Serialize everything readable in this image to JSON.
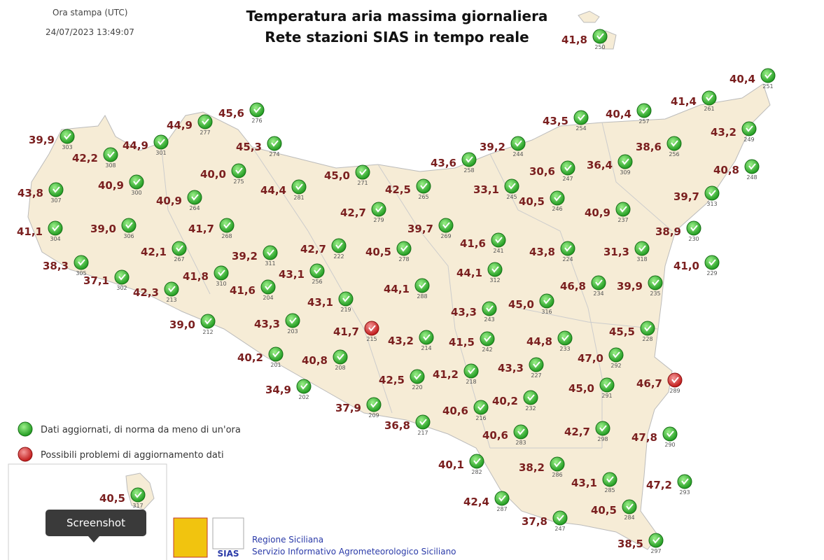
{
  "header": {
    "print_label": "Ora stampa (UTC)",
    "print_time": "24/07/2023 13:49:07",
    "title": "Temperatura aria massima giornaliera",
    "subtitle": "Rete stazioni SIAS in tempo reale"
  },
  "stations": [
    {
      "temp": "41,8",
      "id": "250",
      "color": "green"
    },
    {
      "temp": "40,4",
      "id": "251",
      "color": "green"
    },
    {
      "temp": "41,4",
      "id": "261",
      "color": "green"
    },
    {
      "temp": "43,5",
      "id": "254",
      "color": "green"
    },
    {
      "temp": "40,4",
      "id": "257",
      "color": "green"
    },
    {
      "temp": "45,6",
      "id": "276",
      "color": "green"
    },
    {
      "temp": "44,9",
      "id": "277",
      "color": "green"
    },
    {
      "temp": "39,9",
      "id": "303",
      "color": "green"
    },
    {
      "temp": "44,9",
      "id": "301",
      "color": "green"
    },
    {
      "temp": "42,2",
      "id": "308",
      "color": "green"
    },
    {
      "temp": "45,3",
      "id": "274",
      "color": "green"
    },
    {
      "temp": "39,2",
      "id": "244",
      "color": "green"
    },
    {
      "temp": "38,6",
      "id": "256",
      "color": "green"
    },
    {
      "temp": "43,2",
      "id": "249",
      "color": "green"
    },
    {
      "temp": "43,6",
      "id": "258",
      "color": "green"
    },
    {
      "temp": "30,6",
      "id": "247",
      "color": "green"
    },
    {
      "temp": "36,4",
      "id": "309",
      "color": "green"
    },
    {
      "temp": "40,8",
      "id": "248",
      "color": "green"
    },
    {
      "temp": "40,0",
      "id": "275",
      "color": "green"
    },
    {
      "temp": "45,0",
      "id": "271",
      "color": "green"
    },
    {
      "temp": "43,8",
      "id": "307",
      "color": "green"
    },
    {
      "temp": "40,9",
      "id": "300",
      "color": "green"
    },
    {
      "temp": "40,9",
      "id": "264",
      "color": "green"
    },
    {
      "temp": "44,4",
      "id": "281",
      "color": "green"
    },
    {
      "temp": "42,5",
      "id": "265",
      "color": "green"
    },
    {
      "temp": "33,1",
      "id": "245",
      "color": "green"
    },
    {
      "temp": "40,5",
      "id": "246",
      "color": "green"
    },
    {
      "temp": "39,7",
      "id": "313",
      "color": "green"
    },
    {
      "temp": "42,7",
      "id": "279",
      "color": "green"
    },
    {
      "temp": "40,9",
      "id": "237",
      "color": "green"
    },
    {
      "temp": "41,1",
      "id": "304",
      "color": "green"
    },
    {
      "temp": "39,0",
      "id": "306",
      "color": "green"
    },
    {
      "temp": "41,7",
      "id": "268",
      "color": "green"
    },
    {
      "temp": "39,7",
      "id": "269",
      "color": "green"
    },
    {
      "temp": "38,9",
      "id": "230",
      "color": "green"
    },
    {
      "temp": "41,6",
      "id": "241",
      "color": "green"
    },
    {
      "temp": "42,1",
      "id": "267",
      "color": "green"
    },
    {
      "temp": "39,2",
      "id": "311",
      "color": "green"
    },
    {
      "temp": "42,7",
      "id": "222",
      "color": "green"
    },
    {
      "temp": "40,5",
      "id": "278",
      "color": "green"
    },
    {
      "temp": "43,8",
      "id": "224",
      "color": "green"
    },
    {
      "temp": "31,3",
      "id": "318",
      "color": "green"
    },
    {
      "temp": "38,3",
      "id": "305",
      "color": "green"
    },
    {
      "temp": "41,0",
      "id": "229",
      "color": "green"
    },
    {
      "temp": "37,1",
      "id": "302",
      "color": "green"
    },
    {
      "temp": "41,8",
      "id": "310",
      "color": "green"
    },
    {
      "temp": "43,1",
      "id": "256",
      "color": "green"
    },
    {
      "temp": "44,1",
      "id": "312",
      "color": "green"
    },
    {
      "temp": "42,3",
      "id": "213",
      "color": "green"
    },
    {
      "temp": "41,6",
      "id": "204",
      "color": "green"
    },
    {
      "temp": "44,1",
      "id": "288",
      "color": "green"
    },
    {
      "temp": "46,8",
      "id": "234",
      "color": "green"
    },
    {
      "temp": "39,9",
      "id": "235",
      "color": "green"
    },
    {
      "temp": "43,1",
      "id": "219",
      "color": "green"
    },
    {
      "temp": "45,0",
      "id": "316",
      "color": "green"
    },
    {
      "temp": "43,3",
      "id": "243",
      "color": "green"
    },
    {
      "temp": "39,0",
      "id": "212",
      "color": "green"
    },
    {
      "temp": "43,3",
      "id": "203",
      "color": "green"
    },
    {
      "temp": "41,7",
      "id": "215",
      "color": "red"
    },
    {
      "temp": "45,5",
      "id": "228",
      "color": "green"
    },
    {
      "temp": "43,2",
      "id": "214",
      "color": "green"
    },
    {
      "temp": "41,5",
      "id": "242",
      "color": "green"
    },
    {
      "temp": "44,8",
      "id": "233",
      "color": "green"
    },
    {
      "temp": "47,0",
      "id": "292",
      "color": "green"
    },
    {
      "temp": "40,2",
      "id": "201",
      "color": "green"
    },
    {
      "temp": "40,8",
      "id": "208",
      "color": "green"
    },
    {
      "temp": "43,3",
      "id": "227",
      "color": "green"
    },
    {
      "temp": "41,2",
      "id": "218",
      "color": "green"
    },
    {
      "temp": "42,5",
      "id": "220",
      "color": "green"
    },
    {
      "temp": "45,0",
      "id": "291",
      "color": "green"
    },
    {
      "temp": "46,7",
      "id": "289",
      "color": "red"
    },
    {
      "temp": "34,9",
      "id": "202",
      "color": "green"
    },
    {
      "temp": "40,2",
      "id": "232",
      "color": "green"
    },
    {
      "temp": "37,9",
      "id": "209",
      "color": "green"
    },
    {
      "temp": "40,6",
      "id": "216",
      "color": "green"
    },
    {
      "temp": "36,8",
      "id": "217",
      "color": "green"
    },
    {
      "temp": "40,6",
      "id": "283",
      "color": "green"
    },
    {
      "temp": "42,7",
      "id": "298",
      "color": "green"
    },
    {
      "temp": "47,8",
      "id": "290",
      "color": "green"
    },
    {
      "temp": "40,1",
      "id": "282",
      "color": "green"
    },
    {
      "temp": "38,2",
      "id": "286",
      "color": "green"
    },
    {
      "temp": "43,1",
      "id": "285",
      "color": "green"
    },
    {
      "temp": "47,2",
      "id": "293",
      "color": "green"
    },
    {
      "temp": "42,4",
      "id": "287",
      "color": "green"
    },
    {
      "temp": "40,5",
      "id": "284",
      "color": "green"
    },
    {
      "temp": "37,8",
      "id": "247",
      "color": "green"
    },
    {
      "temp": "38,5",
      "id": "297",
      "color": "green"
    },
    {
      "temp": "40,5",
      "id": "317",
      "color": "green"
    }
  ],
  "legend": {
    "ok": "Dati aggiornati, di norma da meno di un'ora",
    "problem": "Possibili problemi di aggiornamento dati"
  },
  "footer": {
    "logo": "SIAS",
    "org": "Regione Siciliana",
    "service": "Servizio Informativo Agrometeorologico Siciliano"
  },
  "tooltip": "Screenshot"
}
